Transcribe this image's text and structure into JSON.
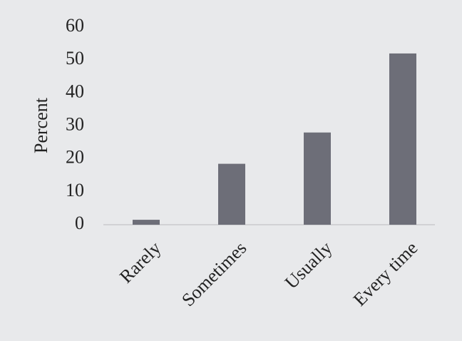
{
  "chart_data": {
    "type": "bar",
    "y_label": "Percent",
    "categories": [
      "Rarely",
      "Sometimes",
      "Usually",
      "Every time"
    ],
    "values": [
      1.5,
      18.5,
      28,
      52
    ],
    "color": "#6d6e78",
    "ylim": [
      0,
      60
    ],
    "yticks": [
      0,
      10,
      20,
      30,
      40,
      50,
      60
    ],
    "grid": false
  }
}
